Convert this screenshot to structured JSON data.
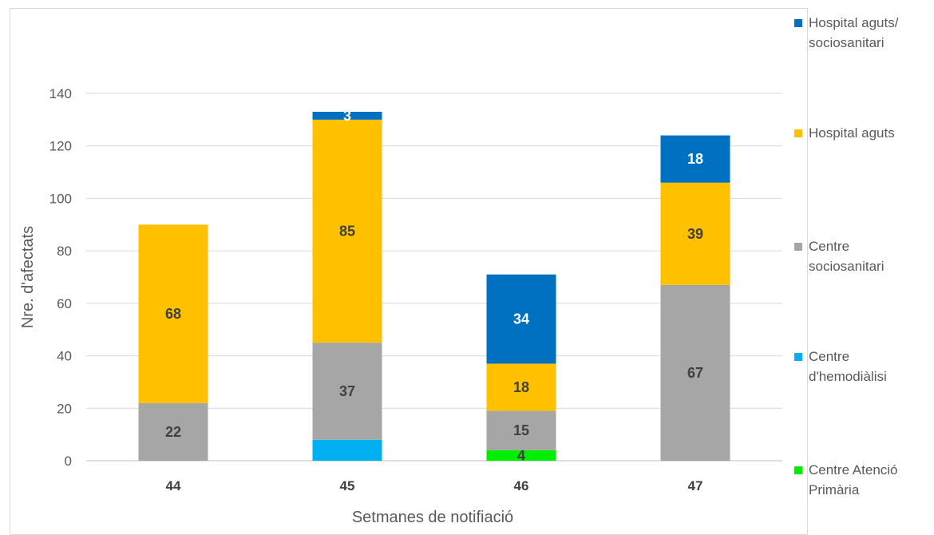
{
  "chart_data": {
    "type": "bar",
    "stacked": true,
    "title": "",
    "xlabel": "Setmanes de notifiació",
    "ylabel": "Nre. d'afectats",
    "ylim": [
      0,
      140
    ],
    "yticks": [
      0,
      20,
      40,
      60,
      80,
      100,
      120,
      140
    ],
    "grid": true,
    "legend_position": "right",
    "categories": [
      "44",
      "45",
      "46",
      "47"
    ],
    "series": [
      {
        "name": "Centre Atenció Primària",
        "color": "#00ee00",
        "label_color": "#404040",
        "values": [
          0,
          0,
          4,
          0
        ],
        "labels": [
          "",
          "",
          "4",
          ""
        ]
      },
      {
        "name": "Centre d'hemodiàlisi",
        "color": "#00b0f0",
        "label_color": "#404040",
        "values": [
          0,
          8,
          0,
          0
        ],
        "labels": [
          "",
          "",
          "",
          ""
        ]
      },
      {
        "name": "Centre sociosanitari",
        "color": "#a6a6a6",
        "label_color": "#404040",
        "values": [
          22,
          37,
          15,
          67
        ],
        "labels": [
          "22",
          "37",
          "15",
          "67"
        ]
      },
      {
        "name": "Hospital aguts",
        "color": "#ffc000",
        "label_color": "#404040",
        "values": [
          68,
          85,
          18,
          39
        ],
        "labels": [
          "68",
          "85",
          "18",
          "39"
        ]
      },
      {
        "name": "Hospital aguts/ sociosanitari",
        "color": "#0070c0",
        "label_color": "#ffffff",
        "values": [
          0,
          3,
          34,
          18
        ],
        "labels": [
          "",
          "3",
          "34",
          "18"
        ]
      }
    ]
  },
  "legend": {
    "items": [
      {
        "lines": [
          "Hospital aguts/",
          "sociosanitari"
        ],
        "color": "#0070c0"
      },
      {
        "lines": [
          "Hospital aguts"
        ],
        "color": "#ffc000"
      },
      {
        "lines": [
          "Centre",
          "sociosanitari"
        ],
        "color": "#a6a6a6"
      },
      {
        "lines": [
          "Centre",
          "d'hemodiàlisi"
        ],
        "color": "#00b0f0"
      },
      {
        "lines": [
          "Centre Atenció",
          "Primària"
        ],
        "color": "#00ee00"
      }
    ]
  }
}
